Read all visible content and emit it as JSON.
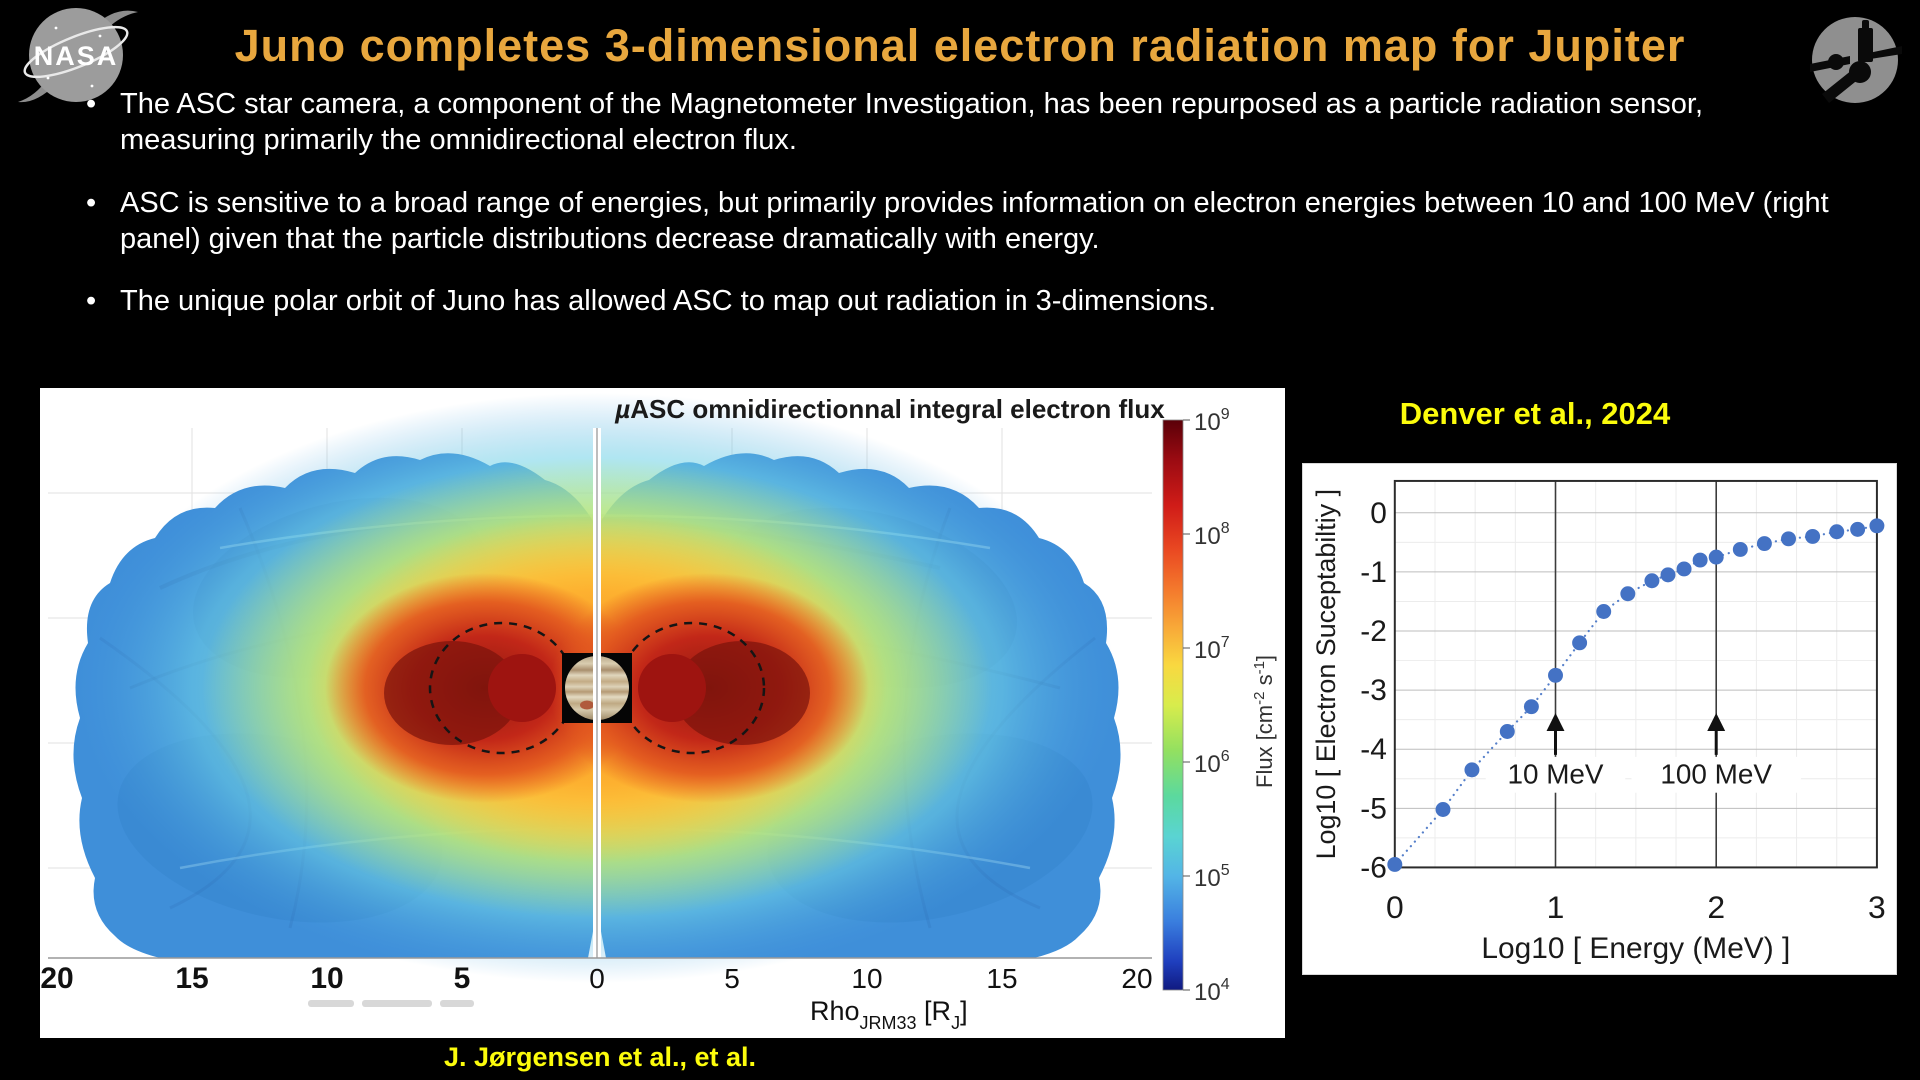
{
  "slide": {
    "title": "Juno completes 3-dimensional electron radiation map for Jupiter",
    "bullets": [
      "The ASC star camera, a component of the Magnetometer Investigation, has been repurposed as a particle radiation sensor, measuring primarily the omnidirectional electron flux.",
      "ASC is sensitive to a broad range of energies, but primarily provides information on electron energies between 10 and 100 MeV (right panel) given that the particle distributions decrease dramatically with energy.",
      "The unique polar orbit of Juno has allowed ASC to map out radiation in 3-dimensions."
    ],
    "bullet_glyph": "•",
    "caption_left": "J. Jørgensen et al., et al.",
    "citation_right": "Denver et al., 2024"
  },
  "branding": {
    "nasa_text": "NASA"
  },
  "colors": {
    "title_gold": "#E8A73E",
    "highlight_yellow": "#FCFC0C",
    "marker_blue": "#4472C4",
    "background": "#000000"
  },
  "flux_map": {
    "title_mu": "µ",
    "title_rest": "ASC omnidirectionnal integral electron flux",
    "x_ticks": [
      "20",
      "15",
      "10",
      "5",
      "0",
      "5",
      "10",
      "15",
      "20"
    ],
    "x_label": {
      "base": "Rho",
      "sub": "JRM33",
      "bracket_open": " [R",
      "bracket_sub": "J",
      "bracket_close": "]"
    },
    "colorbar": {
      "tick_base": "10",
      "tick_exponents": [
        "9",
        "8",
        "7",
        "6",
        "5",
        "4"
      ],
      "label_pre": "Flux [cm",
      "label_sup1": "-2",
      "label_mid": " s",
      "label_sup2": "-1",
      "label_post": "]"
    }
  },
  "chart_data": {
    "type": "scatter",
    "source_label": "Denver et al., 2024",
    "xlabel": "Log10 [ Energy (MeV) ]",
    "ylabel": "Log10 [ Electron Suceptabiltiy ]",
    "xlim": [
      0,
      3
    ],
    "ylim": [
      -6,
      0.55
    ],
    "x_ticks": [
      0,
      1,
      2,
      3
    ],
    "y_ticks": [
      0,
      -1,
      -2,
      -3,
      -4,
      -5,
      -6
    ],
    "grid": true,
    "legend": "none",
    "line_style": "dotted",
    "marker": "circle",
    "marker_color": "#4472C4",
    "points": [
      [
        0.0,
        -5.95
      ],
      [
        0.3,
        -5.02
      ],
      [
        0.48,
        -4.35
      ],
      [
        0.7,
        -3.7
      ],
      [
        0.85,
        -3.28
      ],
      [
        1.0,
        -2.75
      ],
      [
        1.15,
        -2.2
      ],
      [
        1.3,
        -1.67
      ],
      [
        1.45,
        -1.37
      ],
      [
        1.6,
        -1.15
      ],
      [
        1.7,
        -1.05
      ],
      [
        1.8,
        -0.95
      ],
      [
        1.9,
        -0.8
      ],
      [
        2.0,
        -0.75
      ],
      [
        2.15,
        -0.62
      ],
      [
        2.3,
        -0.52
      ],
      [
        2.45,
        -0.44
      ],
      [
        2.6,
        -0.4
      ],
      [
        2.75,
        -0.32
      ],
      [
        2.88,
        -0.28
      ],
      [
        3.0,
        -0.22
      ]
    ],
    "annotations": [
      {
        "x": 1,
        "label": "10 MeV"
      },
      {
        "x": 2,
        "label": "100 MeV"
      }
    ]
  }
}
